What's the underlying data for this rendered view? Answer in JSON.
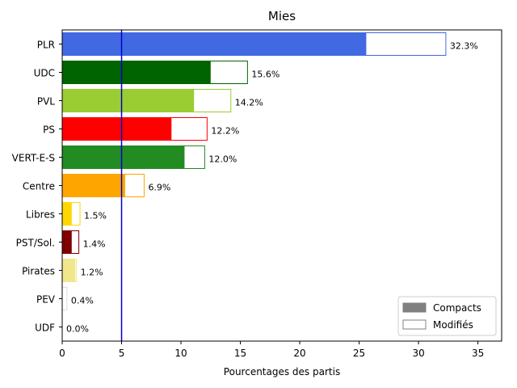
{
  "chart_data": {
    "type": "bar",
    "orientation": "horizontal",
    "title": "Mies",
    "xlabel": "Pourcentages des partis",
    "ylabel": "",
    "xlim": [
      0,
      37
    ],
    "xticks": [
      "0",
      "5",
      "10",
      "15",
      "20",
      "25",
      "30",
      "35"
    ],
    "threshold": 5,
    "threshold_color": "#0000cc",
    "categories": [
      "PLR",
      "UDC",
      "PVL",
      "PS",
      "VERT-E-S",
      "Centre",
      "Libres",
      "PST/Sol.",
      "Pirates",
      "PEV",
      "UDF"
    ],
    "colors": [
      "#4169e1",
      "#006400",
      "#9acd32",
      "#ff0000",
      "#228b22",
      "#ffa500",
      "#ffd700",
      "#800000",
      "#f0e68c",
      "#dddddd",
      "#dddddd"
    ],
    "series": [
      {
        "name": "Compacts",
        "values": [
          25.6,
          12.5,
          11.1,
          9.2,
          10.3,
          5.3,
          0.8,
          0.8,
          1.1,
          0.0,
          0.0
        ]
      },
      {
        "name": "Modifiés",
        "values": [
          32.3,
          15.6,
          14.2,
          12.2,
          12.0,
          6.9,
          1.5,
          1.4,
          1.2,
          0.4,
          0.0
        ]
      }
    ],
    "data_labels": [
      "32.3%",
      "15.6%",
      "14.2%",
      "12.2%",
      "12.0%",
      "6.9%",
      "1.5%",
      "1.4%",
      "1.2%",
      "0.4%",
      "0.0%"
    ],
    "legend": {
      "placement": "bottom-right",
      "entries": [
        {
          "label": "Compacts",
          "style": "filled",
          "color": "#808080"
        },
        {
          "label": "Modifiés",
          "style": "outline",
          "color": "#808080"
        }
      ]
    }
  }
}
